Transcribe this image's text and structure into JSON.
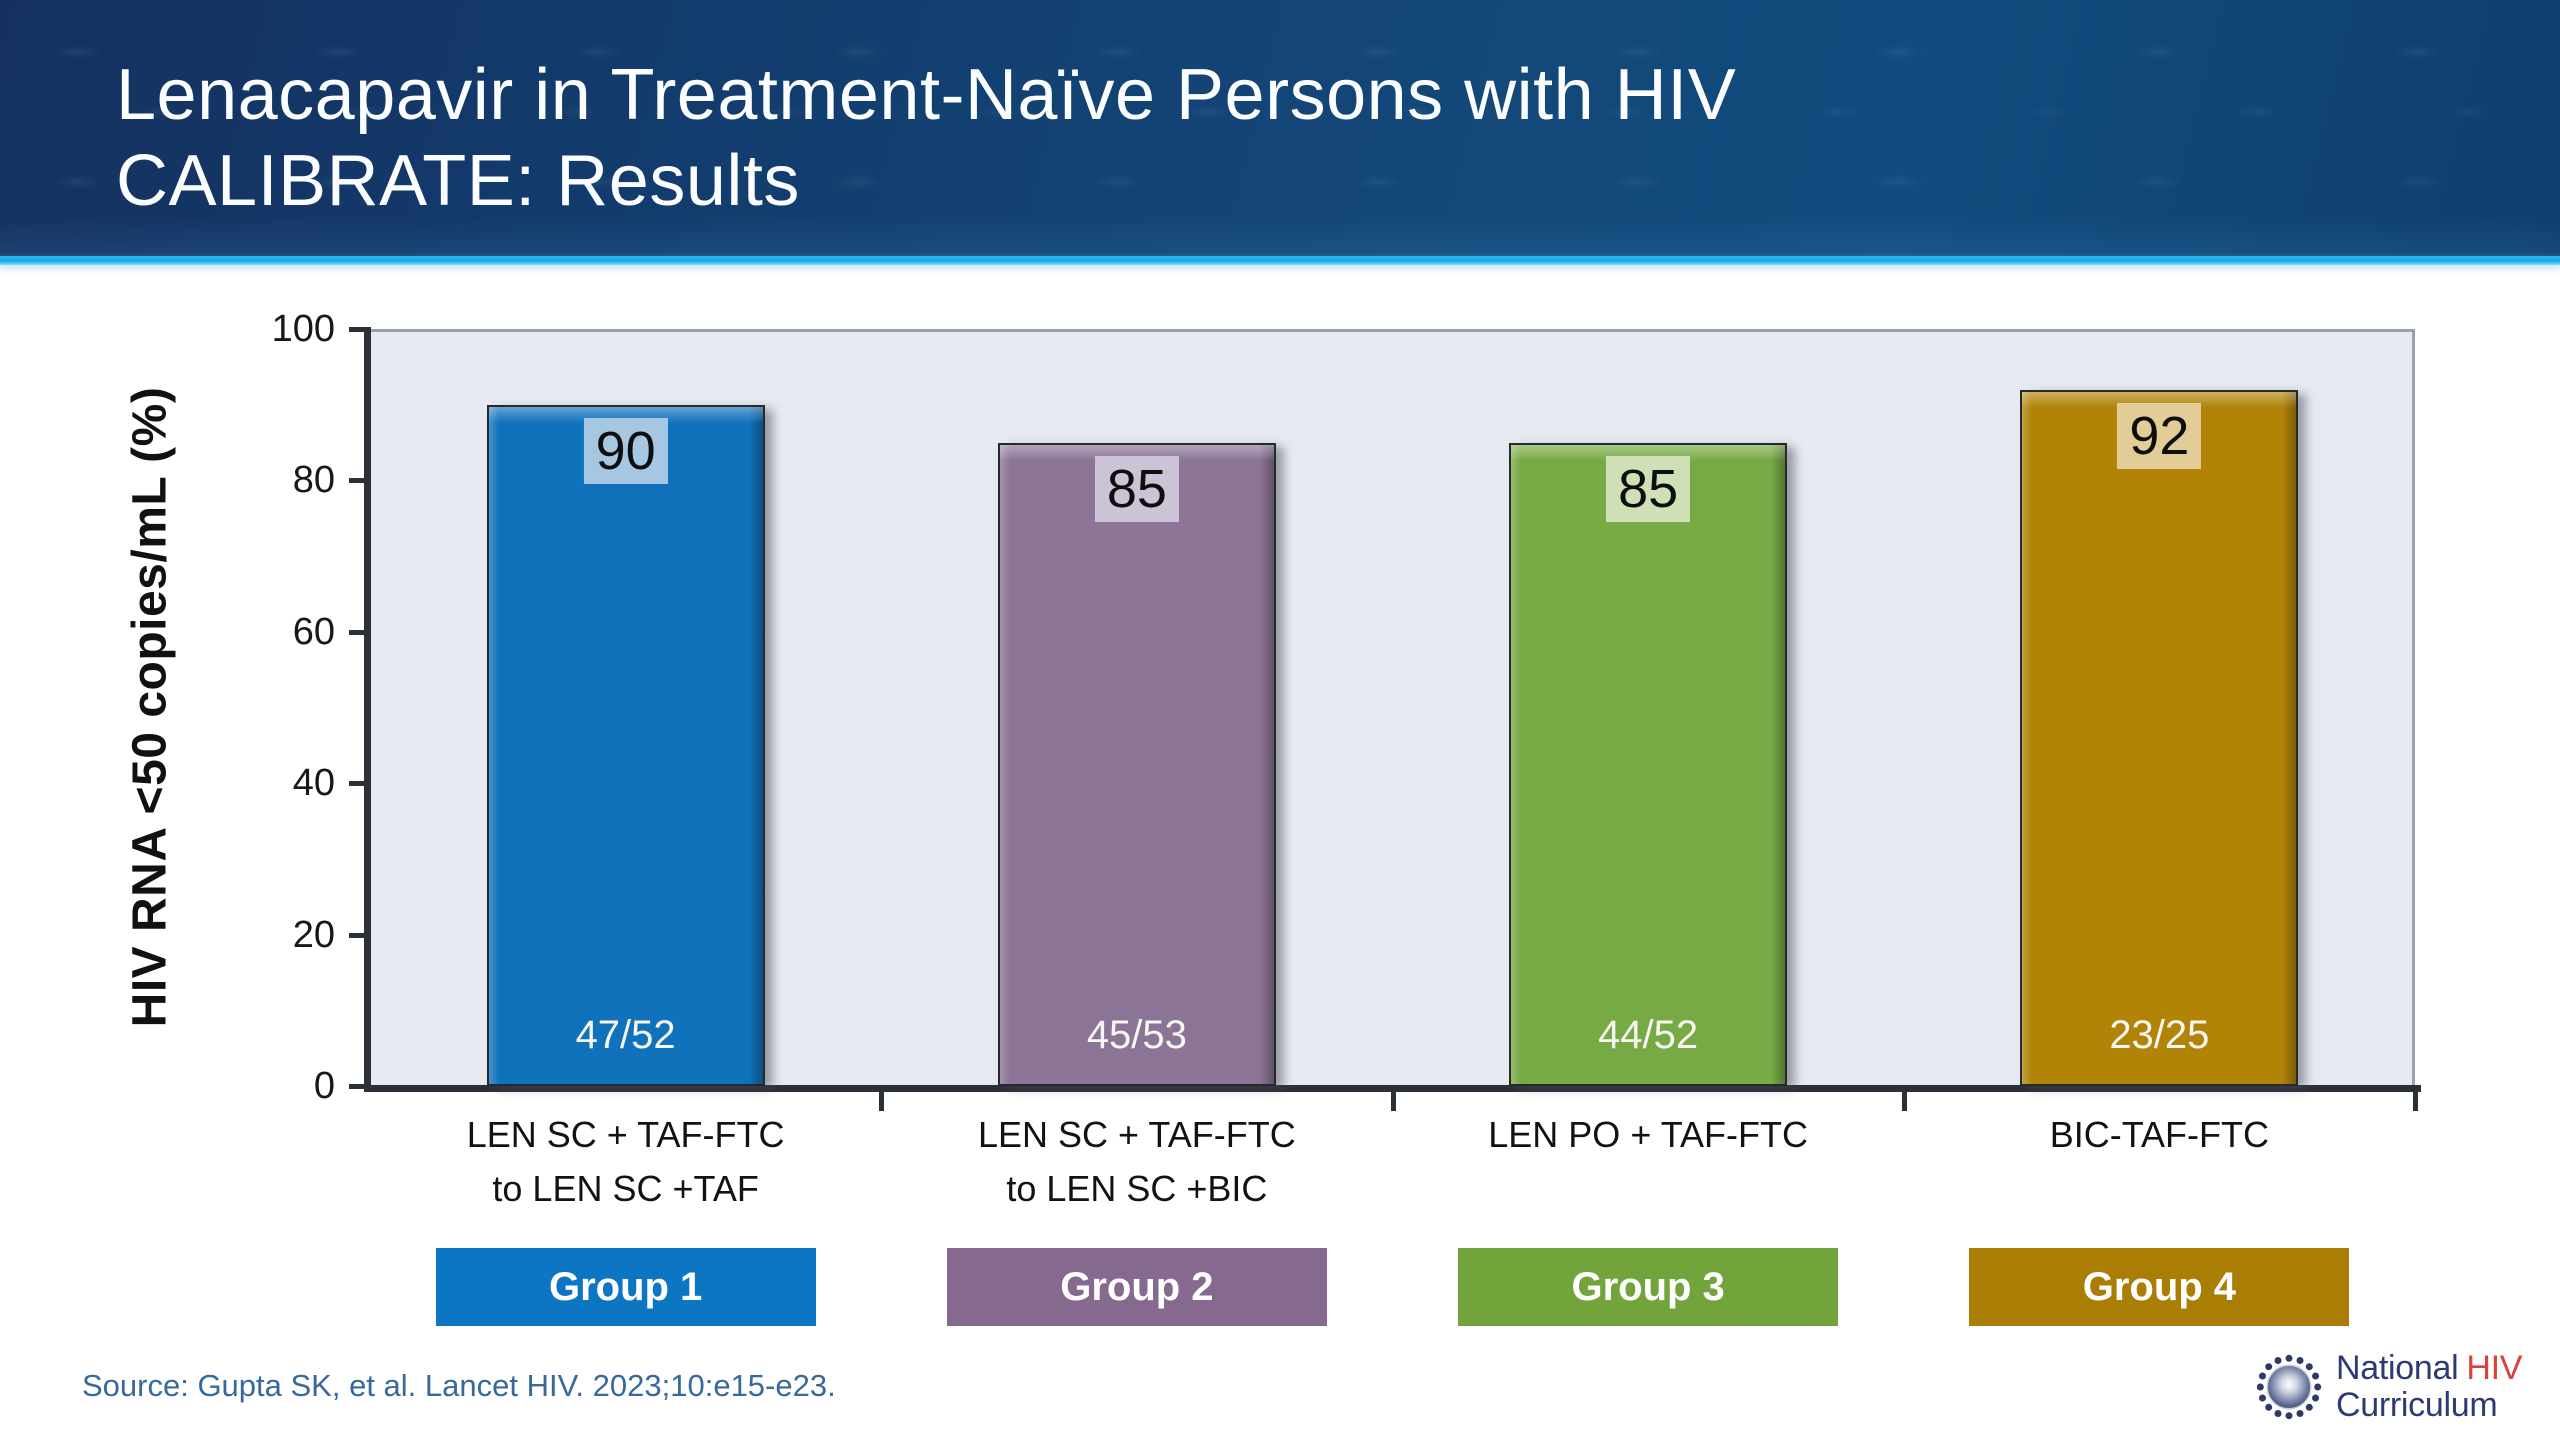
{
  "slide": {
    "title_line1": "Lenacapavir in Treatment-Naïve Persons with HIV",
    "title_line2": "CALIBRATE: Results",
    "source": "Source: Gupta SK, et al. Lancet HIV. 2023;10:e15-e23."
  },
  "footer": {
    "logo": {
      "name_part1": "National",
      "name_hiv": "HIV",
      "name_line2": "Curriculum"
    }
  },
  "chart_data": {
    "type": "bar",
    "title": "CALIBRATE: Results",
    "xlabel": "",
    "ylabel": "HIV RNA <50 copies/mL (%)",
    "ylim": [
      0,
      100
    ],
    "yticks": [
      0,
      20,
      40,
      60,
      80,
      100
    ],
    "grid": false,
    "legend_position": "none",
    "plot_bg": "#e7eaf1",
    "categories": [
      "LEN SC + TAF-FTC to LEN SC +TAF",
      "LEN SC + TAF-FTC to LEN SC +BIC",
      "LEN PO + TAF-FTC",
      "BIC-TAF-FTC"
    ],
    "cat_lines": [
      [
        "LEN SC + TAF-FTC",
        "to LEN SC +TAF"
      ],
      [
        "LEN SC + TAF-FTC",
        "to LEN SC +BIC"
      ],
      [
        "LEN PO + TAF-FTC"
      ],
      [
        "BIC-TAF-FTC"
      ]
    ],
    "values": [
      90,
      85,
      85,
      92
    ],
    "fractions": [
      "47/52",
      "45/53",
      "44/52",
      "23/25"
    ],
    "groups": [
      {
        "label": "Group 1",
        "bar_color": "#1172bc",
        "value_bg": "#a6c7e2",
        "badge_color": "#0d76c3"
      },
      {
        "label": "Group 2",
        "bar_color": "#8b7496",
        "value_bg": "#cdc3d6",
        "badge_color": "#85698f"
      },
      {
        "label": "Group 3",
        "bar_color": "#77aa45",
        "value_bg": "#cfe0b6",
        "badge_color": "#73a43b"
      },
      {
        "label": "Group 4",
        "bar_color": "#b18408",
        "value_bg": "#e3cd96",
        "badge_color": "#aa7d05"
      }
    ]
  }
}
